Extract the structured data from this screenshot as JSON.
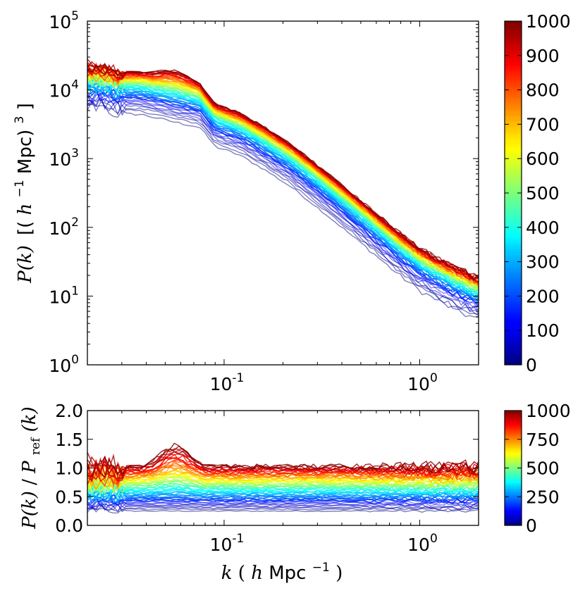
{
  "chart_data": [
    {
      "type": "line",
      "name": "power-spectrum",
      "xscale": "log",
      "yscale": "log",
      "xlim": [
        0.02,
        2.0
      ],
      "ylim": [
        1,
        100000
      ],
      "xticks": [
        {
          "value": 0.1,
          "base": "10",
          "exp": "-1"
        },
        {
          "value": 1,
          "base": "10",
          "exp": "0"
        }
      ],
      "yticks": [
        {
          "value": 1,
          "base": "10",
          "exp": "0"
        },
        {
          "value": 10,
          "base": "10",
          "exp": "1"
        },
        {
          "value": 100,
          "base": "10",
          "exp": "2"
        },
        {
          "value": 1000,
          "base": "10",
          "exp": "3"
        },
        {
          "value": 10000,
          "base": "10",
          "exp": "4"
        },
        {
          "value": 100000,
          "base": "10",
          "exp": "5"
        }
      ],
      "ylabel_parts": {
        "pk": "P(k)",
        "open": "[(",
        "h": "h",
        "hexp": "−1",
        "mpc": " Mpc)",
        "cube": "3",
        "close": "]"
      },
      "series_count": 60,
      "series_range": [
        0,
        1000
      ],
      "k": [
        0.02,
        0.03,
        0.038,
        0.048,
        0.06,
        0.075,
        0.09,
        0.12,
        0.16,
        0.22,
        0.3,
        0.4,
        0.55,
        0.75,
        1.0,
        1.35,
        1.7,
        2.0
      ],
      "reference_pk": [
        22000,
        18000,
        17500,
        15000,
        13000,
        11500,
        6000,
        4500,
        2800,
        1550,
        780,
        400,
        190,
        90,
        48,
        30,
        22,
        18
      ],
      "colorbar": {
        "ticks": [
          "0",
          "100",
          "200",
          "300",
          "400",
          "500",
          "600",
          "700",
          "800",
          "900",
          "1000"
        ]
      }
    },
    {
      "type": "line",
      "name": "ratio",
      "xscale": "log",
      "yscale": "linear",
      "xlim": [
        0.02,
        2.0
      ],
      "ylim": [
        0.0,
        2.0
      ],
      "yticks": [
        "0.0",
        "0.5",
        "1.0",
        "1.5",
        "2.0"
      ],
      "ylabel_parts": {
        "num": "P(k)",
        "slash": " / ",
        "den": "P",
        "sub": "ref",
        "arg": "(k)"
      },
      "xlabel_parts": {
        "k": "k",
        "open": " (",
        "h": "h",
        "mpc": " Mpc",
        "exp": "−1",
        "close": ")"
      },
      "series_count": 60,
      "series_range": [
        0,
        1000
      ],
      "colorbar": {
        "ticks": [
          "0",
          "250",
          "500",
          "750",
          "1000"
        ]
      }
    }
  ]
}
